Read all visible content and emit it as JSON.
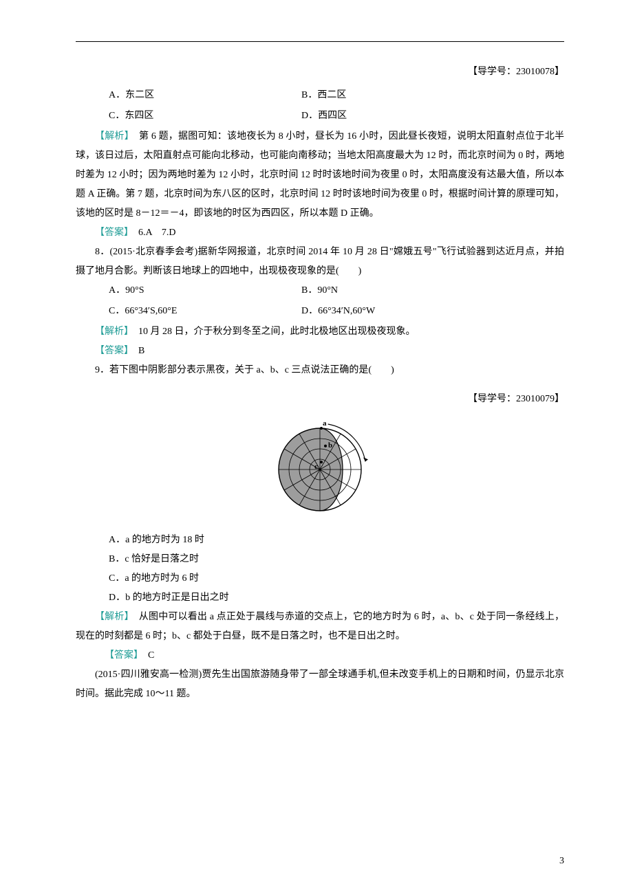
{
  "refs": {
    "ref1": "【导学号：23010078】",
    "ref2": "【导学号：23010079】"
  },
  "q67": {
    "optA": "A．东二区",
    "optB": "B．西二区",
    "optC": "C．东四区",
    "optD": "D．西四区",
    "analysis_label": "【解析】",
    "analysis_text": "　第 6 题，据图可知：该地夜长为 8 小时，昼长为 16 小时，因此昼长夜短，说明太阳直射点位于北半球，该日过后，太阳直射点可能向北移动，也可能向南移动；当地太阳高度最大为 12 时，而北京时间为 0 时，两地时差为 12 小时；因为两地时差为 12 小时，北京时间 12 时时该地时间为夜里 0 时，太阳高度没有达最大值，所以本题 A 正确。第 7 题，北京时间为东八区的区时，北京时间 12 时时该地时间为夜里 0 时，根据时间计算的原理可知，该地的区时是 8－12＝－4，即该地的时区为西四区，所以本题 D 正确。",
    "answer_label": "【答案】",
    "answer_text": "　6.A　7.D"
  },
  "q8": {
    "stem": "8．(2015·北京春季会考)据新华网报道，北京时间 2014 年 10 月 28 日\"嫦娥五号\"飞行试验器到达近月点，并拍摄了地月合影。判断该日地球上的四地中，出现极夜现象的是(　　)",
    "optA": "A．90°S",
    "optB": "B．90°N",
    "optC": "C．66°34′S,60°E",
    "optD": "D．66°34′N,60°W",
    "analysis_label": "【解析】",
    "analysis_text": "　10 月 28 日，介于秋分到冬至之间，此时北极地区出现极夜现象。",
    "answer_label": "【答案】",
    "answer_text": "　B"
  },
  "q9": {
    "stem": "9．若下图中阴影部分表示黑夜，关于 a、b、c 三点说法正确的是(　　)",
    "optA": "A．a 的地方时为 18 时",
    "optB": "B．c 恰好是日落之时",
    "optC": "C．a 的地方时为 6 时",
    "optD": "D．b 的地方时正是日出之时",
    "analysis_label": "【解析】",
    "analysis_text": "　从图中可以看出 a 点正处于晨线与赤道的交点上，它的地方时为 6 时，a、b、c 处于同一条经线上，现在的时刻都是 6 时；b、c 都处于白昼，既不是日落之时，也不是日出之时。",
    "answer_label": "【答案】",
    "answer_text": "　C",
    "diagram": {
      "labels": {
        "a": "a",
        "b": "b",
        "c": "c"
      },
      "colors": {
        "outline": "#000000",
        "shade": "#9d9d9d",
        "bg": "#ffffff"
      },
      "fontsize": 11,
      "radius_outer": 60,
      "inner_circles": 4,
      "meridians": 12
    }
  },
  "q1011": {
    "stem": "(2015·四川雅安高一检测)贾先生出国旅游随身带了一部全球通手机,但未改变手机上的日期和时间，仍显示北京时间。据此完成 10～11 题。"
  },
  "page_num": "3",
  "colors": {
    "teal": "#1f9c96",
    "text": "#000000"
  }
}
